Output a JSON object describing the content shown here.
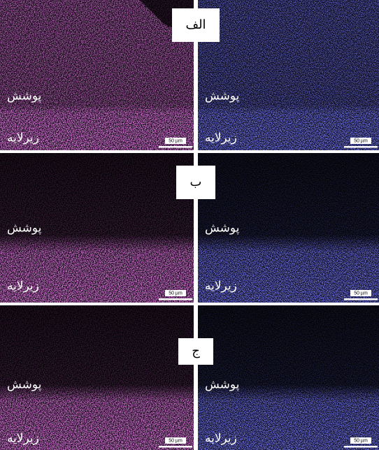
{
  "figure": {
    "rows": [
      {
        "label": "الف",
        "maps": [
          {
            "coating": "پوشش",
            "substrate": "زیرلایه",
            "scale_bar": "50 µm"
          },
          {
            "coating": "پوشش",
            "substrate": "زیرلایه",
            "scale_bar": "50 µm"
          }
        ]
      },
      {
        "label": "ب",
        "maps": [
          {
            "coating": "پوشش",
            "substrate": "زیرلایه",
            "scale_bar": "50 µm"
          },
          {
            "coating": "پوشش",
            "substrate": "زیرلایه",
            "scale_bar": "50 µm"
          }
        ]
      },
      {
        "label": "ج",
        "maps": [
          {
            "coating": "پوشش",
            "substrate": "زیرلایه",
            "scale_bar": "50 µm"
          },
          {
            "coating": "پوشش",
            "substrate": "زیرلایه",
            "scale_bar": "50 µm"
          }
        ]
      }
    ]
  }
}
